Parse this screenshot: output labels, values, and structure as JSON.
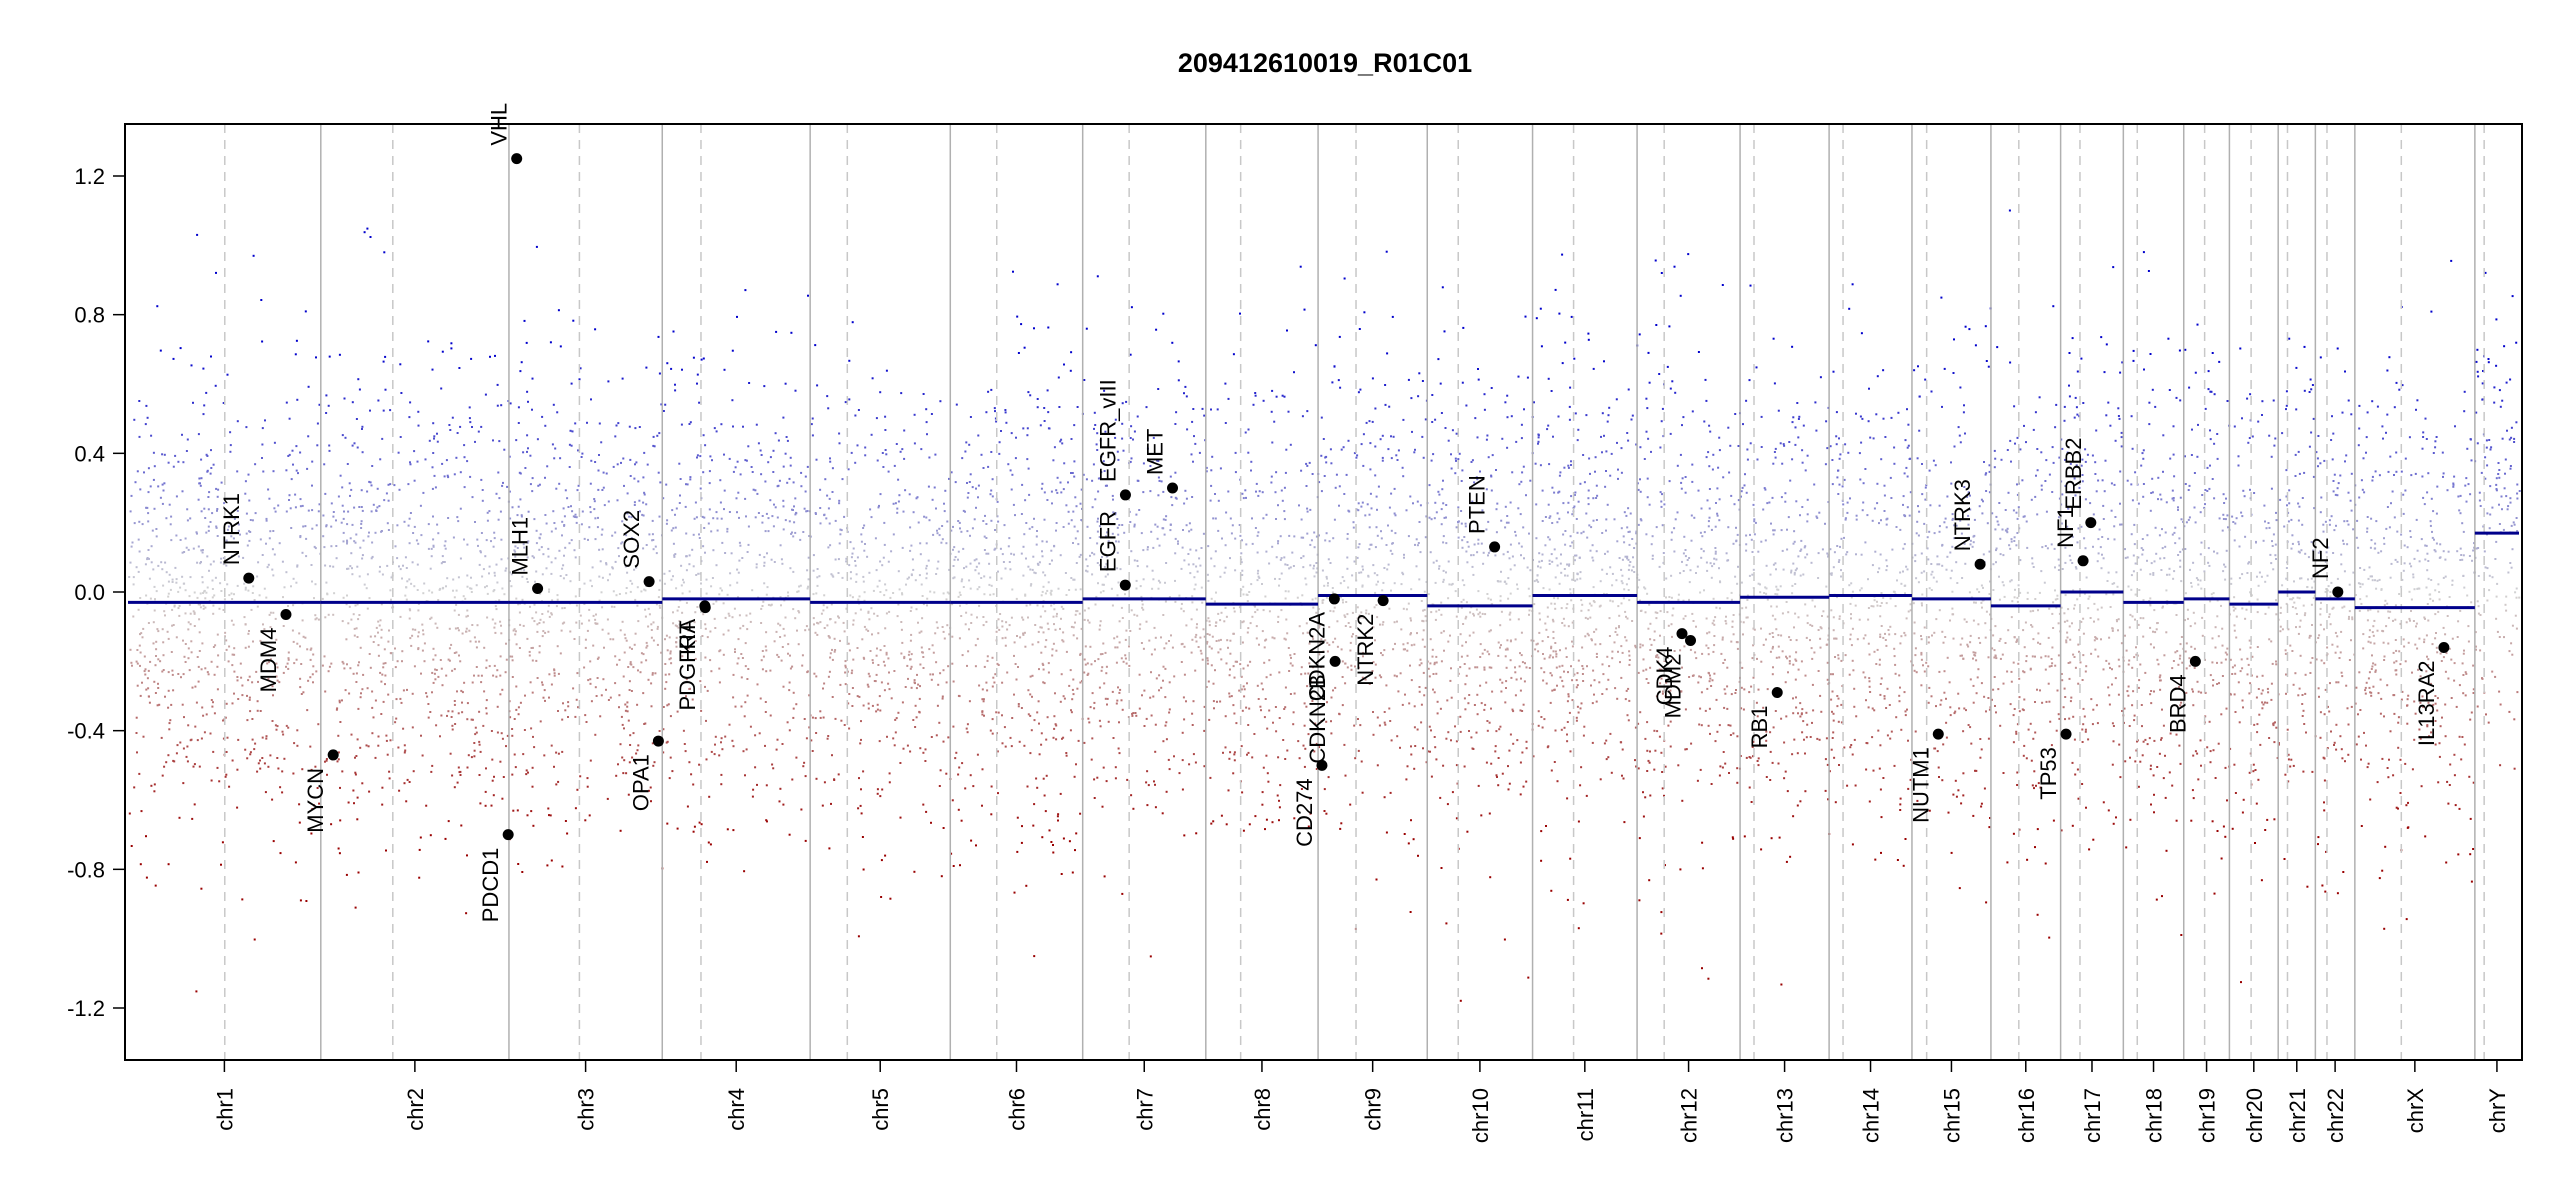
{
  "chart_data": {
    "type": "scatter",
    "title": "209412610019_R01C01",
    "xlabel": "",
    "ylabel": "",
    "ylim": [
      -1.35,
      1.35
    ],
    "yticks": [
      -1.2,
      -0.8,
      -0.4,
      0.0,
      0.4,
      0.8,
      1.2
    ],
    "ytick_labels": [
      "-1.2",
      "-0.8",
      "-0.4",
      "0.0",
      "0.4",
      "0.8",
      "1.2"
    ],
    "grid": false,
    "legend": "none",
    "colors": {
      "gain": "#0000cc",
      "loss": "#990000",
      "segment": "#00008b",
      "boundary": "#b0b0b0",
      "centromere": "#c8c8c8",
      "point": "#000000"
    },
    "chromosomes": [
      {
        "name": "chr1",
        "size": 249,
        "centromere": 125,
        "segment": -0.03
      },
      {
        "name": "chr2",
        "size": 243,
        "centromere": 93,
        "segment": -0.03
      },
      {
        "name": "chr3",
        "size": 198,
        "centromere": 91,
        "segment": -0.03
      },
      {
        "name": "chr4",
        "size": 191,
        "centromere": 50,
        "segment": -0.02
      },
      {
        "name": "chr5",
        "size": 181,
        "centromere": 48,
        "segment": -0.03
      },
      {
        "name": "chr6",
        "size": 171,
        "centromere": 60,
        "segment": -0.03
      },
      {
        "name": "chr7",
        "size": 159,
        "centromere": 60,
        "segment": -0.02
      },
      {
        "name": "chr8",
        "size": 145,
        "centromere": 45,
        "segment": -0.035
      },
      {
        "name": "chr9",
        "size": 141,
        "centromere": 49,
        "segment": -0.01
      },
      {
        "name": "chr10",
        "size": 136,
        "centromere": 40,
        "segment": -0.04
      },
      {
        "name": "chr11",
        "size": 135,
        "centromere": 53,
        "segment": -0.01
      },
      {
        "name": "chr12",
        "size": 133,
        "centromere": 35,
        "segment": -0.03
      },
      {
        "name": "chr13",
        "size": 115,
        "centromere": 18,
        "segment": -0.015
      },
      {
        "name": "chr14",
        "size": 107,
        "centromere": 18,
        "segment": -0.01
      },
      {
        "name": "chr15",
        "size": 102,
        "centromere": 19,
        "segment": -0.02
      },
      {
        "name": "chr16",
        "size": 90,
        "centromere": 36,
        "segment": -0.04
      },
      {
        "name": "chr17",
        "size": 81,
        "centromere": 25,
        "segment": 0.0
      },
      {
        "name": "chr18",
        "size": 78,
        "centromere": 18,
        "segment": -0.03
      },
      {
        "name": "chr19",
        "size": 59,
        "centromere": 27,
        "segment": -0.02
      },
      {
        "name": "chr20",
        "size": 63,
        "centromere": 28,
        "segment": -0.035
      },
      {
        "name": "chr21",
        "size": 48,
        "centromere": 12,
        "segment": 0.0
      },
      {
        "name": "chr22",
        "size": 51,
        "centromere": 15,
        "segment": -0.02
      },
      {
        "name": "chrX",
        "size": 155,
        "centromere": 60,
        "segment": -0.045
      },
      {
        "name": "chrY",
        "size": 57,
        "centromere": 12,
        "segment": 0.17
      }
    ],
    "genes": [
      {
        "name": "NTRK1",
        "chr": "chr1",
        "pos": 156,
        "value": 0.04
      },
      {
        "name": "MDM4",
        "chr": "chr1",
        "pos": 204,
        "value": -0.065
      },
      {
        "name": "MYCN",
        "chr": "chr2",
        "pos": 16,
        "value": -0.47
      },
      {
        "name": "PDCD1",
        "chr": "chr2",
        "pos": 242,
        "value": -0.7
      },
      {
        "name": "VHL",
        "chr": "chr3",
        "pos": 10,
        "value": 1.25
      },
      {
        "name": "MLH1",
        "chr": "chr3",
        "pos": 37,
        "value": 0.01
      },
      {
        "name": "SOX2",
        "chr": "chr3",
        "pos": 181,
        "value": 0.03
      },
      {
        "name": "OPA1",
        "chr": "chr3",
        "pos": 193,
        "value": -0.43
      },
      {
        "name": "PDGFRA",
        "chr": "chr4",
        "pos": 55,
        "value": -0.04
      },
      {
        "name": "KIT",
        "chr": "chr4",
        "pos": 55.5,
        "value": -0.045
      },
      {
        "name": "EGFR",
        "chr": "chr7",
        "pos": 55,
        "value": 0.02
      },
      {
        "name": "EGFR_vIII",
        "chr": "chr7",
        "pos": 55.2,
        "value": 0.28
      },
      {
        "name": "MET",
        "chr": "chr7",
        "pos": 116,
        "value": 0.3
      },
      {
        "name": "CD274",
        "chr": "chr9",
        "pos": 5,
        "value": -0.5
      },
      {
        "name": "CDKN2A",
        "chr": "chr9",
        "pos": 21,
        "value": -0.02
      },
      {
        "name": "CDKN2B",
        "chr": "chr9",
        "pos": 22,
        "value": -0.2
      },
      {
        "name": "NTRK2",
        "chr": "chr9",
        "pos": 84,
        "value": -0.025
      },
      {
        "name": "PTEN",
        "chr": "chr10",
        "pos": 87,
        "value": 0.13
      },
      {
        "name": "CDK4",
        "chr": "chr12",
        "pos": 58,
        "value": -0.12
      },
      {
        "name": "MDM2",
        "chr": "chr12",
        "pos": 69,
        "value": -0.14
      },
      {
        "name": "RB1",
        "chr": "chr13",
        "pos": 48,
        "value": -0.29
      },
      {
        "name": "NUTM1",
        "chr": "chr15",
        "pos": 34,
        "value": -0.41
      },
      {
        "name": "NTRK3",
        "chr": "chr15",
        "pos": 88,
        "value": 0.08
      },
      {
        "name": "TP53",
        "chr": "chr17",
        "pos": 7,
        "value": -0.41
      },
      {
        "name": "NF1",
        "chr": "chr17",
        "pos": 29,
        "value": 0.09
      },
      {
        "name": "ERBB2",
        "chr": "chr17",
        "pos": 39,
        "value": 0.2
      },
      {
        "name": "BRD4",
        "chr": "chr19",
        "pos": 15,
        "value": -0.2
      },
      {
        "name": "NF2",
        "chr": "chr22",
        "pos": 29,
        "value": 0.0
      },
      {
        "name": "IL13RA2",
        "chr": "chrX",
        "pos": 115,
        "value": -0.16
      }
    ],
    "probe_sample_count": 9000,
    "probe_noise_sd": 0.33,
    "probe_value_range": [
      -1.25,
      1.25
    ]
  }
}
